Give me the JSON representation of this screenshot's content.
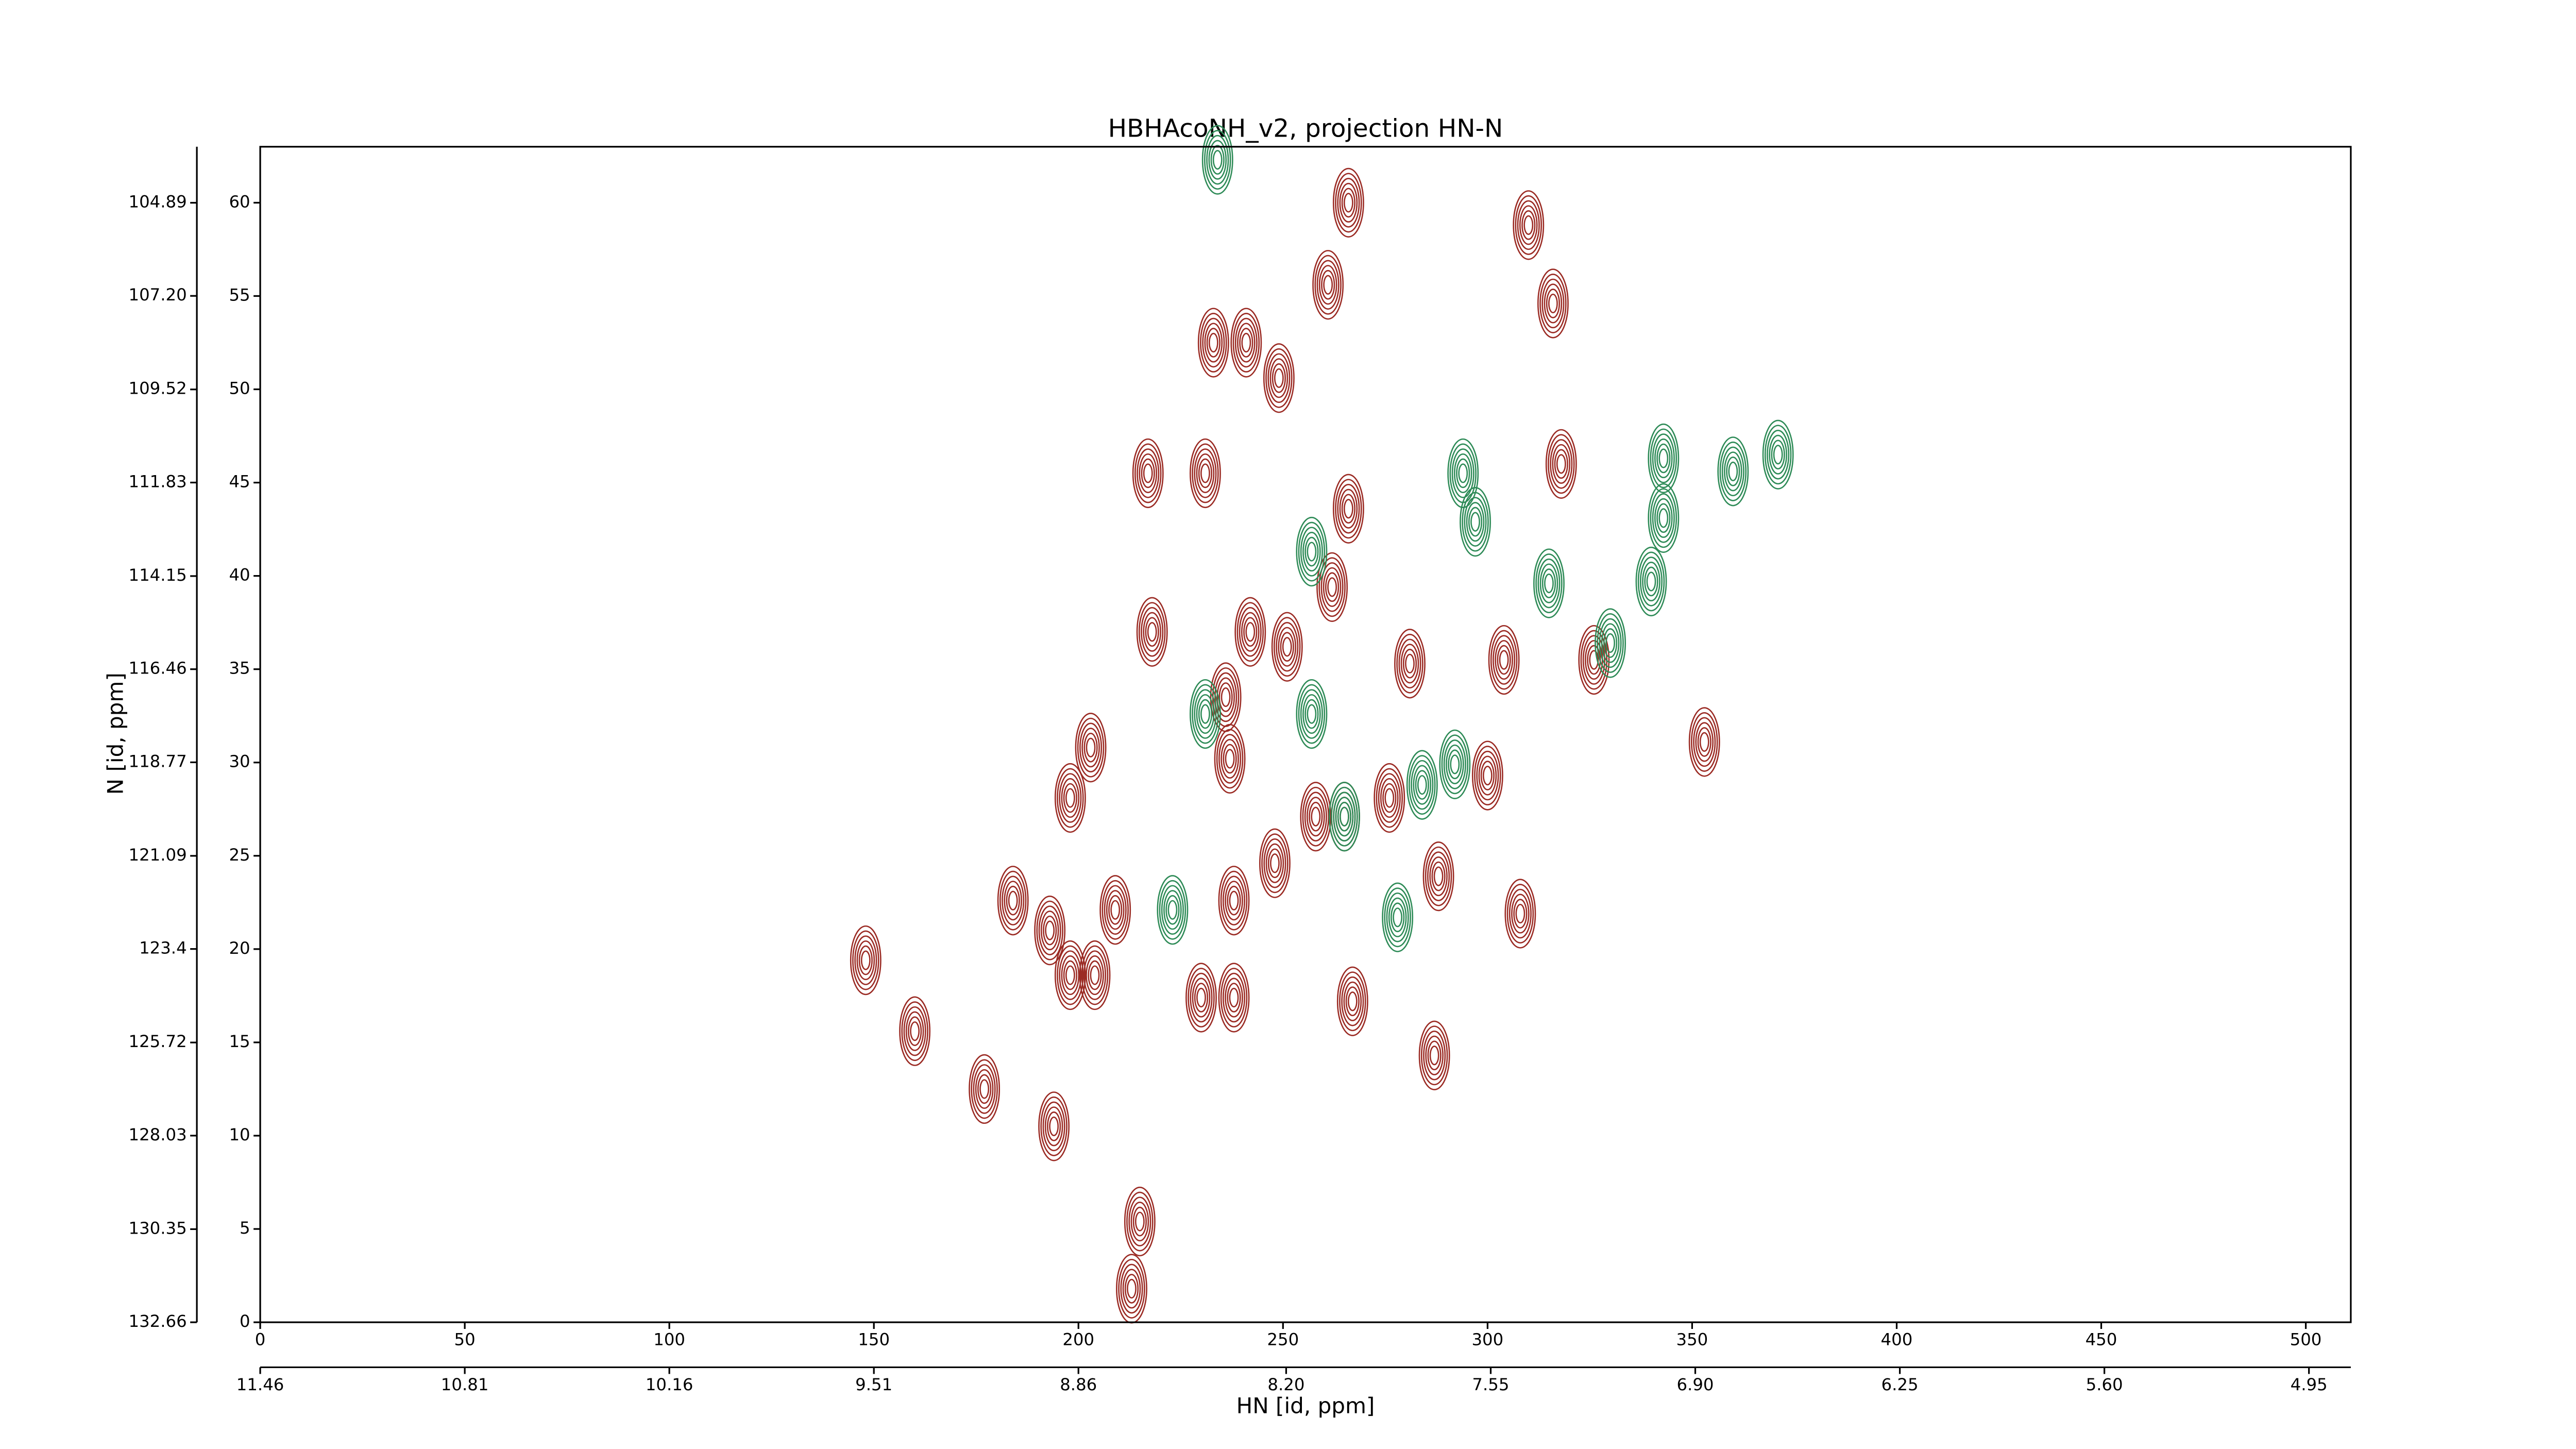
{
  "chart_data": {
    "type": "contour",
    "title": "HBHAcoNH_v2, projection HN-N",
    "xlabel": "HN [id, ppm]",
    "ylabel": "N [id, ppm]",
    "xlim": [
      0,
      511
    ],
    "xticks": [
      0,
      50,
      100,
      150,
      200,
      250,
      300,
      350,
      400,
      450,
      500
    ],
    "ylim": [
      0,
      63
    ],
    "yticks": [
      0,
      5,
      10,
      15,
      20,
      25,
      30,
      35,
      40,
      45,
      50,
      55,
      60
    ],
    "x2lim": [
      11.46,
      4.817
    ],
    "x2ticks": [
      11.46,
      10.81,
      10.16,
      9.51,
      8.86,
      {
        "value": 8.2,
        "label": "8.20"
      },
      7.55,
      {
        "value": 6.9,
        "label": "6.90"
      },
      6.25,
      {
        "value": 5.6,
        "label": "5.60"
      },
      4.95
    ],
    "y2lim": [
      132.66,
      103.5
    ],
    "y2ticks": [
      104.89,
      {
        "value": 107.2,
        "label": "107.20"
      },
      109.52,
      111.83,
      114.15,
      116.46,
      118.77,
      121.09,
      123.4,
      125.72,
      128.03,
      130.35,
      132.66
    ],
    "series": [
      {
        "color": "#9b2b24",
        "x": [
          266,
          310,
          261,
          316,
          233,
          241,
          249,
          217,
          231,
          266,
          318,
          262,
          218,
          242,
          251,
          281,
          304,
          326,
          236,
          353,
          203,
          237,
          198,
          258,
          265,
          276,
          300,
          288,
          248,
          238,
          209,
          184,
          193,
          198,
          204,
          230,
          238,
          148,
          160,
          267,
          287,
          177,
          194,
          215,
          213,
          308
        ],
        "y": [
          60,
          58.8,
          55.6,
          54.6,
          52.5,
          52.5,
          50.6,
          45.5,
          45.5,
          43.6,
          46,
          39.4,
          37,
          37,
          36.2,
          35.3,
          35.5,
          35.5,
          33.5,
          31.1,
          30.8,
          30.2,
          28.1,
          27.1,
          27.1,
          28.1,
          29.3,
          23.9,
          24.6,
          22.6,
          22.1,
          22.6,
          21,
          18.6,
          18.6,
          17.4,
          17.4,
          19.4,
          15.6,
          17.2,
          14.3,
          12.5,
          10.5,
          5.4,
          1.8,
          21.9
        ]
      },
      {
        "color": "#2e8b57",
        "x": [
          234,
          294,
          297,
          257,
          315,
          330,
          340,
          343,
          343,
          360,
          371,
          257,
          231,
          284,
          292,
          265,
          223,
          278
        ],
        "y": [
          62.3,
          45.5,
          42.9,
          41.3,
          39.6,
          36.4,
          39.7,
          46.3,
          43.1,
          45.6,
          46.5,
          32.6,
          32.6,
          28.8,
          29.9,
          27.1,
          22.1,
          21.7
        ]
      }
    ]
  }
}
